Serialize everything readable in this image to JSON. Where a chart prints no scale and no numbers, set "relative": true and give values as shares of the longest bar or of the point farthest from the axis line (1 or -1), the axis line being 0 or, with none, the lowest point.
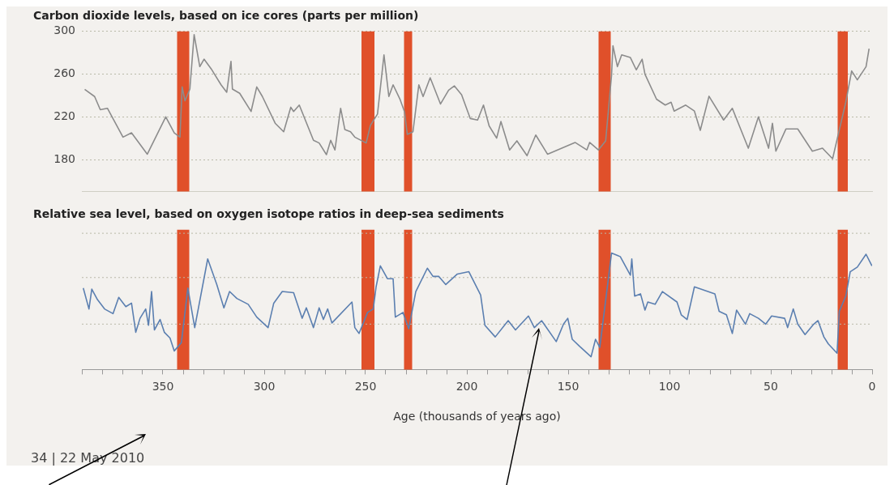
{
  "chart_data": [
    {
      "type": "line",
      "title": "Carbon dioxide levels, based on ice cores (parts per million)",
      "xlim": [
        390,
        0
      ],
      "ylim": [
        150,
        300
      ],
      "yticks": [
        180,
        220,
        260,
        300
      ],
      "grid": "y",
      "tick_labels": "y",
      "legend": false,
      "marker": "none",
      "bands": [
        {
          "axis": "x",
          "from": 343,
          "to": 337,
          "color": "#e0502a"
        },
        {
          "axis": "x",
          "from": 252,
          "to": 245.6,
          "color": "#e0502a"
        },
        {
          "axis": "x",
          "from": 231,
          "to": 227,
          "color": "#e0502a"
        },
        {
          "axis": "x",
          "from": 135,
          "to": 129,
          "color": "#e0502a"
        },
        {
          "axis": "x",
          "from": 17,
          "to": 12,
          "color": "#e0502a"
        }
      ],
      "series": [
        {
          "color": "#8c8c8c",
          "x": [
            388.6,
            383.7,
            380.9,
            377.4,
            369.7,
            365.5,
            357.7,
            348.6,
            344.4,
            341.6,
            340.5,
            339.1,
            336.7,
            334.6,
            331.8,
            329.7,
            326.2,
            321.3,
            318.5,
            316.4,
            315.7,
            312.1,
            306.5,
            303.7,
            300.9,
            294.6,
            290.4,
            286.9,
            285.5,
            282.7,
            275.7,
            272.9,
            269.3,
            267.2,
            265.1,
            262.3,
            260.2,
            257.4,
            255.3,
            249.7,
            247.6,
            244.1,
            240.9,
            238.5,
            236.4,
            232.9,
            230.8,
            229.4,
            226.6,
            223.7,
            221.6,
            218.1,
            213,
            209,
            206.2,
            202.6,
            198.3,
            194.7,
            191.8,
            189,
            185.3,
            183.2,
            178.9,
            175.3,
            170.3,
            166,
            160.2,
            146.6,
            140.8,
            139.4,
            135.1,
            131.5,
            128.6,
            127.9,
            125.7,
            123.6,
            119.3,
            116.4,
            113.5,
            112.1,
            106.4,
            102.1,
            99.2,
            97.7,
            92,
            87.7,
            84.8,
            80.5,
            73.3,
            69,
            61.1,
            56.1,
            51.1,
            49.2,
            47.5,
            42.5,
            36.7,
            29.5,
            24.5,
            19.5,
            13,
            10.1,
            7.3,
            3,
            1.5
          ],
          "values": [
            245.7,
            239,
            226.7,
            228,
            201,
            205,
            185,
            220,
            205,
            201,
            248,
            235,
            246,
            297,
            267,
            274,
            265,
            250,
            243,
            272,
            246,
            242,
            225,
            248,
            239,
            214,
            206,
            229,
            225,
            231,
            198,
            195.5,
            184.6,
            198,
            189,
            228,
            208,
            206,
            201,
            195.5,
            212,
            222.6,
            278,
            239,
            250,
            236,
            225,
            203.6,
            206,
            250,
            239,
            256.6,
            232,
            245,
            249,
            240.7,
            218.4,
            217,
            231,
            211.5,
            200,
            215.6,
            189,
            197.5,
            183.6,
            203,
            185,
            196,
            189,
            196,
            189,
            197.5,
            258.8,
            286.6,
            267,
            278,
            275.5,
            264,
            274,
            260,
            236.5,
            231,
            233.7,
            225.4,
            231,
            225.4,
            207.3,
            239.3,
            217,
            228,
            190.6,
            220,
            190.6,
            214,
            187.8,
            208.7,
            208.7,
            187.8,
            190.6,
            180.8,
            233.7,
            263,
            254.6,
            267,
            283.8
          ]
        }
      ]
    },
    {
      "type": "line",
      "title": "Relative sea level, based on oxygen isotope ratios in deep-sea sediments",
      "xlabel": "Age (thousands of years ago)",
      "relative": true,
      "xlim": [
        390,
        0
      ],
      "tick_labels": "x",
      "ref_lines": [
        {
          "axis": "y",
          "value": 0.39,
          "color": "#b9b9a8",
          "line_style": "dotted"
        },
        {
          "axis": "y",
          "value": 0.79,
          "color": "#b9b9a8",
          "line_style": "dotted"
        },
        {
          "axis": "y",
          "value": 1.17,
          "color": "#b9b9a8",
          "line_style": "dotted"
        }
      ],
      "legend": false,
      "marker": "none",
      "xticks": [
        {
          "value": 390,
          "label": null
        },
        {
          "value": 380,
          "label": null
        },
        {
          "value": 370,
          "label": null
        },
        {
          "value": 360,
          "label": null
        },
        350,
        {
          "value": 340,
          "label": null
        },
        {
          "value": 330,
          "label": null
        },
        {
          "value": 320,
          "label": null
        },
        {
          "value": 310,
          "label": null
        },
        300,
        {
          "value": 290,
          "label": null
        },
        {
          "value": 280,
          "label": null
        },
        {
          "value": 270,
          "label": null
        },
        {
          "value": 260,
          "label": null
        },
        250,
        {
          "value": 240,
          "label": null
        },
        {
          "value": 230,
          "label": null
        },
        {
          "value": 220,
          "label": null
        },
        {
          "value": 210,
          "label": null
        },
        200,
        {
          "value": 190,
          "label": null
        },
        {
          "value": 180,
          "label": null
        },
        {
          "value": 170,
          "label": null
        },
        {
          "value": 160,
          "label": null
        },
        150,
        {
          "value": 140,
          "label": null
        },
        {
          "value": 130,
          "label": null
        },
        {
          "value": 120,
          "label": null
        },
        {
          "value": 110,
          "label": null
        },
        100,
        {
          "value": 90,
          "label": null
        },
        {
          "value": 80,
          "label": null
        },
        {
          "value": 70,
          "label": null
        },
        {
          "value": 60,
          "label": null
        },
        50,
        {
          "value": 40,
          "label": null
        },
        {
          "value": 30,
          "label": null
        },
        {
          "value": 20,
          "label": null
        },
        {
          "value": 10,
          "label": null
        },
        0
      ],
      "annotations": [
        "34 | 22 May 2010"
      ],
      "bands": [
        {
          "axis": "x",
          "from": 343,
          "to": 337,
          "color": "#e0502a"
        },
        {
          "axis": "x",
          "from": 252,
          "to": 245.6,
          "color": "#e0502a"
        },
        {
          "axis": "x",
          "from": 231,
          "to": 227,
          "color": "#e0502a"
        },
        {
          "axis": "x",
          "from": 135,
          "to": 129,
          "color": "#e0502a"
        },
        {
          "axis": "x",
          "from": 17,
          "to": 12,
          "color": "#e0502a"
        }
      ],
      "series": [
        {
          "color": "#5b7fb0",
          "x": [
            389.3,
            386.5,
            385.1,
            382.3,
            378.8,
            374.6,
            371.8,
            368.3,
            365.5,
            363.4,
            361.3,
            358.5,
            357.1,
            355.6,
            354.2,
            351.4,
            349.3,
            346.5,
            344.4,
            340.9,
            337.7,
            334.3,
            327.9,
            323.4,
            319.9,
            317.1,
            313.5,
            307.9,
            303.7,
            298.1,
            295.3,
            291.1,
            285.5,
            281.3,
            279.2,
            275.7,
            272.9,
            270.8,
            268.7,
            266.6,
            256.7,
            255.3,
            253.2,
            249,
            246.2,
            244.8,
            242.7,
            239.2,
            236.4,
            235.3,
            231.5,
            228.7,
            225.2,
            219.5,
            216.7,
            213.9,
            210.4,
            204.7,
            199,
            193.2,
            191.1,
            186,
            179.6,
            176,
            169.6,
            166.7,
            163.1,
            155.9,
            152.3,
            150.2,
            148,
            144.4,
            138.7,
            136.5,
            134.4,
            128.6,
            124.3,
            119.3,
            118.6,
            117.2,
            114.3,
            112.1,
            110.7,
            107.1,
            103.5,
            96.3,
            94.2,
            91.3,
            87.7,
            77.6,
            75.5,
            71.9,
            69,
            66.9,
            62.5,
            60.4,
            56.1,
            52.5,
            49.6,
            43.2,
            41.7,
            38.9,
            36.7,
            33.1,
            28.8,
            26.7,
            23.8,
            21.6,
            17.3,
            16.2,
            13,
            10.8,
            7.3,
            3,
            0.1
          ],
          "values": [
            0.7,
            0.52,
            0.69,
            0.6,
            0.52,
            0.48,
            0.62,
            0.54,
            0.57,
            0.32,
            0.44,
            0.52,
            0.38,
            0.67,
            0.34,
            0.43,
            0.32,
            0.27,
            0.16,
            0.23,
            0.7,
            0.36,
            0.95,
            0.73,
            0.53,
            0.67,
            0.61,
            0.56,
            0.45,
            0.36,
            0.57,
            0.67,
            0.66,
            0.44,
            0.53,
            0.36,
            0.53,
            0.43,
            0.52,
            0.4,
            0.58,
            0.36,
            0.31,
            0.49,
            0.52,
            0.71,
            0.89,
            0.78,
            0.78,
            0.45,
            0.49,
            0.35,
            0.67,
            0.87,
            0.8,
            0.8,
            0.73,
            0.82,
            0.84,
            0.64,
            0.38,
            0.28,
            0.42,
            0.34,
            0.46,
            0.36,
            0.42,
            0.24,
            0.39,
            0.44,
            0.26,
            0.2,
            0.11,
            0.26,
            0.19,
            1,
            0.97,
            0.81,
            0.95,
            0.63,
            0.65,
            0.51,
            0.58,
            0.56,
            0.67,
            0.58,
            0.47,
            0.43,
            0.71,
            0.65,
            0.5,
            0.47,
            0.31,
            0.51,
            0.39,
            0.48,
            0.44,
            0.39,
            0.46,
            0.44,
            0.36,
            0.52,
            0.39,
            0.3,
            0.39,
            0.42,
            0.28,
            0.22,
            0.14,
            0.5,
            0.63,
            0.84,
            0.88,
            0.99,
            0.89
          ]
        }
      ]
    }
  ]
}
